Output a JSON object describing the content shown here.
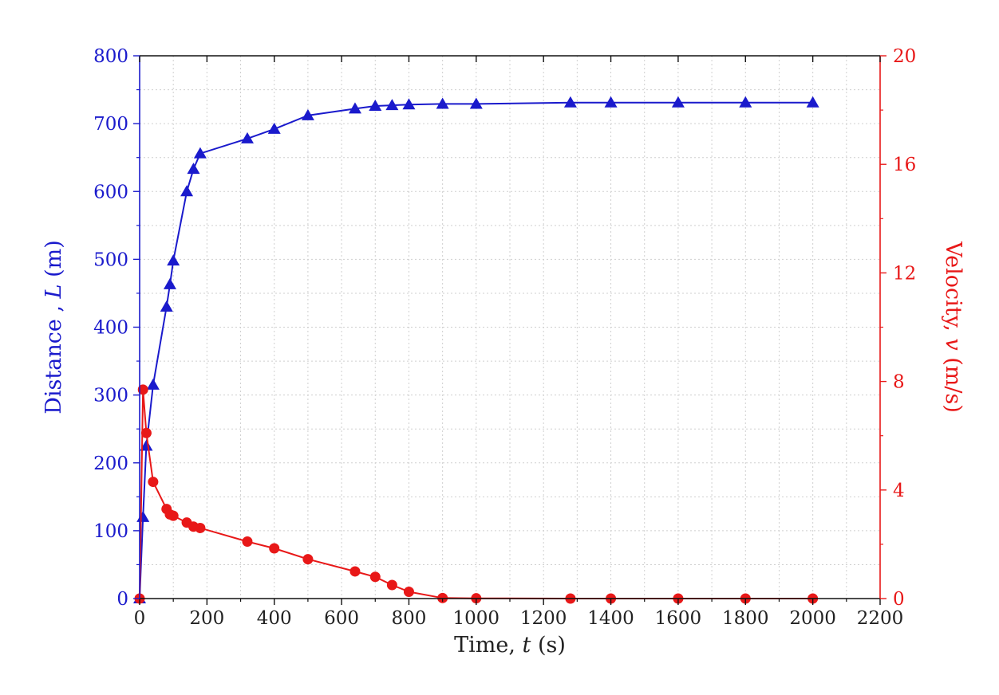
{
  "chart_data": {
    "type": "line",
    "xlabel": {
      "prefix": "Time, ",
      "var": "t",
      "suffix": " (s)"
    },
    "ylabel_left": {
      "prefix": "Distance , ",
      "var": "L",
      "suffix": " (m)"
    },
    "ylabel_right": {
      "prefix": "Velocity, ",
      "var": "v",
      "suffix": " (m/s)"
    },
    "xlim": [
      0,
      2200
    ],
    "ylim_left": [
      0,
      800
    ],
    "ylim_right": [
      0,
      20
    ],
    "xticks": [
      "0",
      "200",
      "400",
      "600",
      "800",
      "1000",
      "1200",
      "1400",
      "1600",
      "1800",
      "2000",
      "2200"
    ],
    "yticks_left": [
      "0",
      "100",
      "200",
      "300",
      "400",
      "500",
      "600",
      "700",
      "800"
    ],
    "yticks_right": [
      "0",
      "4",
      "8",
      "12",
      "16",
      "20"
    ],
    "grid": true,
    "series": [
      {
        "axis": "left",
        "marker": "triangle",
        "color": "#1a1acc",
        "points": [
          [
            0,
            0
          ],
          [
            10,
            120
          ],
          [
            20,
            225
          ],
          [
            40,
            315
          ],
          [
            80,
            430
          ],
          [
            90,
            463
          ],
          [
            100,
            498
          ],
          [
            140,
            600
          ],
          [
            160,
            633
          ],
          [
            180,
            656
          ],
          [
            320,
            678
          ],
          [
            400,
            692
          ],
          [
            500,
            712
          ],
          [
            640,
            722
          ],
          [
            700,
            726
          ],
          [
            750,
            727
          ],
          [
            800,
            728
          ],
          [
            900,
            729
          ],
          [
            1000,
            729
          ],
          [
            1280,
            731
          ],
          [
            1400,
            731
          ],
          [
            1600,
            731
          ],
          [
            1800,
            731
          ],
          [
            2000,
            731
          ]
        ]
      },
      {
        "axis": "right",
        "marker": "circle",
        "color": "#e81818",
        "points": [
          [
            0,
            0
          ],
          [
            10,
            7.7
          ],
          [
            20,
            6.1
          ],
          [
            40,
            4.3
          ],
          [
            80,
            3.3
          ],
          [
            90,
            3.1
          ],
          [
            100,
            3.05
          ],
          [
            140,
            2.8
          ],
          [
            160,
            2.65
          ],
          [
            180,
            2.6
          ],
          [
            320,
            2.1
          ],
          [
            400,
            1.85
          ],
          [
            500,
            1.45
          ],
          [
            640,
            1.0
          ],
          [
            700,
            0.8
          ],
          [
            750,
            0.5
          ],
          [
            800,
            0.25
          ],
          [
            900,
            0.02
          ],
          [
            1000,
            0.01
          ],
          [
            1280,
            0.0
          ],
          [
            1400,
            0.0
          ],
          [
            1600,
            0.0
          ],
          [
            1800,
            0.0
          ],
          [
            2000,
            0.0
          ]
        ]
      }
    ]
  }
}
